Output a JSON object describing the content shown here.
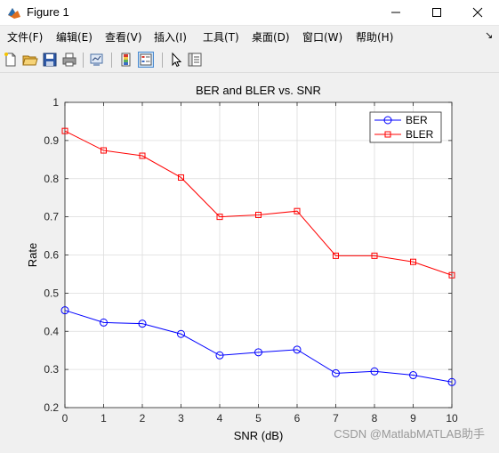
{
  "window": {
    "title": "Figure 1",
    "icons": [
      "matlab-figure-icon",
      "minimize-icon",
      "maximize-icon",
      "close-icon"
    ]
  },
  "menubar": {
    "items": [
      "文件(F)",
      "编辑(E)",
      "查看(V)",
      "插入(I)",
      "工具(T)",
      "桌面(D)",
      "窗口(W)",
      "帮助(H)"
    ],
    "overflow_icon": "chevron-icon"
  },
  "toolbar": {
    "buttons": [
      "new-figure-icon",
      "open-file-icon",
      "save-icon",
      "print-icon",
      "link-figure-icon",
      "insert-colorbar-icon",
      "insert-legend-icon",
      "pointer-icon",
      "property-editor-icon"
    ]
  },
  "watermark": "CSDN @MatlabMATLAB助手",
  "colors": {
    "ber": "#0000ff",
    "bler": "#ff0000",
    "grid": "#dcdcdc",
    "axes_bg": "#ffffff",
    "figure_bg": "#f0f0f0"
  },
  "chart_data": {
    "type": "line",
    "title": "BER and BLER vs. SNR",
    "xlabel": "SNR (dB)",
    "ylabel": "Rate",
    "x": [
      0,
      1,
      2,
      3,
      4,
      5,
      6,
      7,
      8,
      9,
      10
    ],
    "xlim": [
      0,
      10
    ],
    "ylim": [
      0.2,
      1
    ],
    "xticks": [
      "0",
      "1",
      "2",
      "3",
      "4",
      "5",
      "6",
      "7",
      "8",
      "9",
      "10"
    ],
    "yticks": [
      "0.2",
      "0.3",
      "0.4",
      "0.5",
      "0.6",
      "0.7",
      "0.8",
      "0.9",
      "1"
    ],
    "grid": true,
    "legend_position": "top-right",
    "series": [
      {
        "name": "BER",
        "marker": "circle",
        "values": [
          0.455,
          0.423,
          0.42,
          0.393,
          0.337,
          0.345,
          0.352,
          0.29,
          0.295,
          0.285,
          0.267
        ]
      },
      {
        "name": "BLER",
        "marker": "square",
        "values": [
          0.925,
          0.874,
          0.86,
          0.803,
          0.7,
          0.705,
          0.715,
          0.598,
          0.598,
          0.582,
          0.547
        ]
      }
    ]
  }
}
